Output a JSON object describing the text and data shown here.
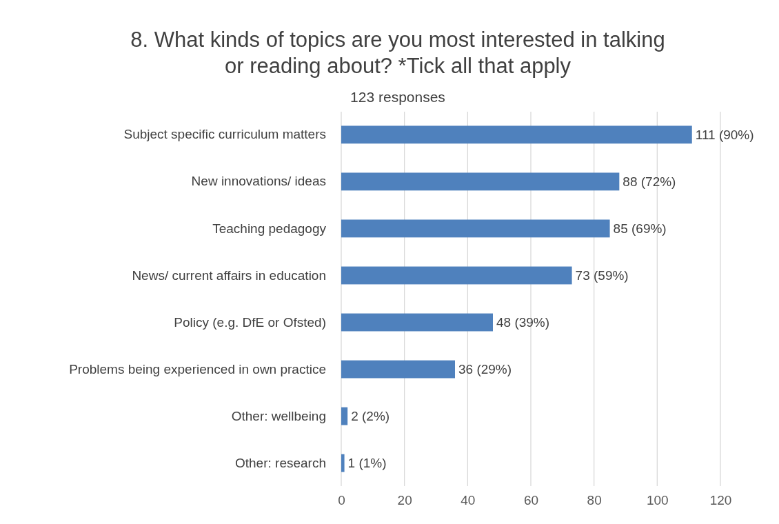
{
  "chart_data": {
    "type": "bar",
    "orientation": "horizontal",
    "title": "8. What kinds of topics are you most interested in talking or reading about? *Tick all that apply",
    "subtitle": "123 responses",
    "categories": [
      "Subject specific curriculum matters",
      "New innovations/ ideas",
      "Teaching pedagogy",
      "News/ current affairs in education",
      "Policy (e.g. DfE or Ofsted)",
      "Problems being experienced in own practice",
      "Other: wellbeing",
      "Other: research"
    ],
    "values": [
      111,
      88,
      85,
      73,
      48,
      36,
      2,
      1
    ],
    "value_labels": [
      "111 (90%)",
      "88 (72%)",
      "85 (69%)",
      "73 (59%)",
      "48 (39%)",
      "36 (29%)",
      "2 (2%)",
      "1 (1%)"
    ],
    "color": "#4f81bd",
    "xlim": [
      0,
      120
    ],
    "xticks": [
      0,
      20,
      40,
      60,
      80,
      100,
      120
    ],
    "grid": "x"
  }
}
